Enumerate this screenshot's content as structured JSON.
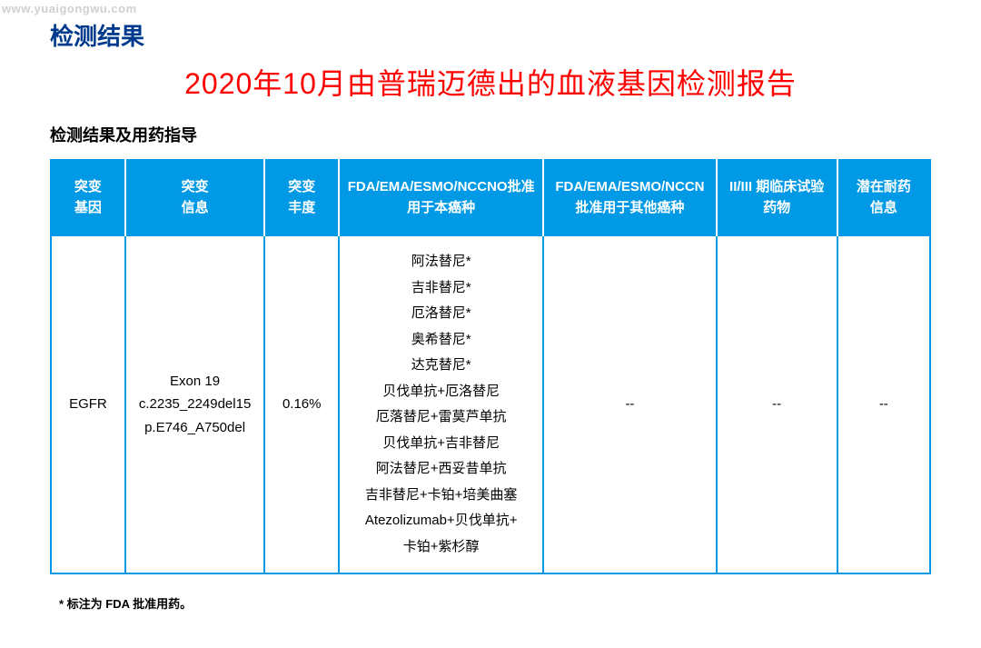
{
  "watermark": "www.yuaigongwu.com",
  "section_title": "检测结果",
  "report_title": "2020年10月由普瑞迈德出的血液基因检测报告",
  "sub_title": "检测结果及用药指导",
  "colors": {
    "header_bg": "#0099e6",
    "header_text": "#ffffff",
    "border": "#0099e6",
    "section_title": "#003a8c",
    "report_title": "#ff0000"
  },
  "columns": [
    "突变基因",
    "突变信息",
    "突变丰度",
    "FDA/EMA/ESMO/NCCNO批准用于本癌种",
    "FDA/EMA/ESMO/NCCN 批准用于其他癌种",
    "II/III 期临床试验药物",
    "潜在耐药信息"
  ],
  "row": {
    "gene": "EGFR",
    "mutation_info": [
      "Exon 19",
      "c.2235_2249del15",
      "p.E746_A750del"
    ],
    "frequency": "0.16%",
    "drugs_this_cancer": [
      "阿法替尼*",
      "吉非替尼*",
      "厄洛替尼*",
      "奥希替尼*",
      "达克替尼*",
      "贝伐单抗+厄洛替尼",
      "厄落替尼+雷莫芦单抗",
      "贝伐单抗+吉非替尼",
      "阿法替尼+西妥昔单抗",
      "吉非替尼+卡铂+培美曲塞",
      "Atezolizumab+贝伐单抗+",
      "卡铂+紫杉醇"
    ],
    "drugs_other_cancer": "--",
    "clinical_trial": "--",
    "resistance": "--"
  },
  "footnote": "*  标注为 FDA 批准用药。"
}
